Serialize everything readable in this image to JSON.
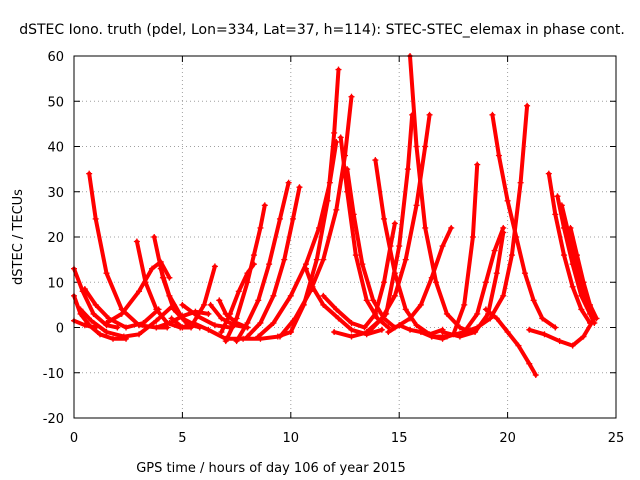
{
  "chart_data": {
    "type": "scatter",
    "title": "dSTEC Iono. truth (pdel, Lon=334, Lat=37, h=114): STEC-STEC_elemax in phase cont.",
    "xlabel": "GPS time / hours of day 106 of year 2015",
    "ylabel": "dSTEC  / TECUs",
    "xlim": [
      0,
      25
    ],
    "ylim": [
      -20,
      60
    ],
    "xticks": [
      0,
      5,
      10,
      15,
      20,
      25
    ],
    "yticks": [
      -20,
      -10,
      0,
      10,
      20,
      30,
      40,
      50,
      60
    ],
    "grid": true,
    "marker": "plus",
    "color": "#ff0000",
    "series": [
      {
        "x": [
          0.0,
          0.4,
          0.9,
          1.5,
          2.0
        ],
        "y": [
          13,
          8,
          3,
          0.5,
          0
        ]
      },
      {
        "x": [
          0.0,
          0.3,
          0.7,
          1.2,
          1.8,
          2.4
        ],
        "y": [
          7,
          3,
          0.5,
          -1.5,
          -2.5,
          -2.5
        ]
      },
      {
        "x": [
          0.0,
          0.5,
          1.0
        ],
        "y": [
          1.5,
          0.5,
          0
        ]
      },
      {
        "x": [
          0.7,
          1.0,
          1.5,
          2.2,
          3.0,
          3.8,
          4.3
        ],
        "y": [
          34,
          24,
          12,
          4,
          0.5,
          0,
          0
        ]
      },
      {
        "x": [
          0.5,
          1.0,
          1.6,
          2.4,
          3.2,
          3.9
        ],
        "y": [
          8.5,
          5,
          2,
          0,
          1,
          4
        ]
      },
      {
        "x": [
          0.3,
          0.8,
          1.5,
          2.3,
          3.0,
          3.8,
          4.6
        ],
        "y": [
          4,
          1.5,
          -1,
          -2,
          -1.5,
          1.5,
          5
        ]
      },
      {
        "x": [
          1.5,
          2.2,
          3.0,
          3.6,
          4.0,
          4.4
        ],
        "y": [
          1,
          3,
          8,
          13,
          14.5,
          11
        ]
      },
      {
        "x": [
          2.9,
          3.3,
          3.8,
          4.3,
          4.9,
          5.4
        ],
        "y": [
          19,
          10,
          4,
          1,
          0,
          0
        ]
      },
      {
        "x": [
          3.7,
          4.1,
          4.6,
          5.2,
          5.8
        ],
        "y": [
          20,
          11,
          4,
          1,
          0
        ]
      },
      {
        "x": [
          4.0,
          4.4,
          5.0,
          5.6
        ],
        "y": [
          13,
          7,
          2,
          0.5
        ]
      },
      {
        "x": [
          3.8,
          4.4,
          5.0,
          5.6,
          6.2
        ],
        "y": [
          0,
          1,
          2.5,
          3.5,
          3
        ]
      },
      {
        "x": [
          4.5,
          5.0,
          5.5,
          6.0,
          6.5
        ],
        "y": [
          2,
          0,
          1,
          5,
          13.5
        ]
      },
      {
        "x": [
          5.0,
          5.7,
          6.5,
          7.2
        ],
        "y": [
          5,
          2.5,
          0.5,
          0
        ]
      },
      {
        "x": [
          6.3,
          6.8,
          7.4,
          8.0
        ],
        "y": [
          5,
          2,
          0.5,
          0
        ]
      },
      {
        "x": [
          6.7,
          7.0,
          7.5,
          8.0
        ],
        "y": [
          6,
          3,
          1,
          0
        ]
      },
      {
        "x": [
          5.5,
          6.2,
          7.0,
          7.8,
          8.6,
          9.4,
          10.0
        ],
        "y": [
          1,
          -0.5,
          -2.5,
          -2.5,
          -2.5,
          -2,
          -1
        ]
      },
      {
        "x": [
          6.8,
          7.2,
          7.6,
          8.0,
          8.3
        ],
        "y": [
          -1,
          3,
          8,
          12,
          14
        ]
      },
      {
        "x": [
          7.0,
          7.5,
          8.0,
          8.3,
          8.6,
          8.8
        ],
        "y": [
          -3,
          2,
          10,
          16,
          22,
          27
        ]
      },
      {
        "x": [
          7.5,
          8.0,
          8.5,
          9.0,
          9.5,
          9.9
        ],
        "y": [
          -3,
          1,
          6,
          14,
          24,
          32
        ]
      },
      {
        "x": [
          8.0,
          8.6,
          9.2,
          9.7,
          10.1,
          10.4
        ],
        "y": [
          -2,
          1,
          7,
          15,
          24,
          31
        ]
      },
      {
        "x": [
          8.5,
          9.2,
          10.0,
          10.7,
          11.3,
          11.8,
          12.1
        ],
        "y": [
          -2,
          1,
          7,
          14,
          22,
          32,
          41
        ]
      },
      {
        "x": [
          9.5,
          10.2,
          10.9,
          11.5,
          12.1,
          12.5,
          12.8
        ],
        "y": [
          -2,
          2,
          8,
          15,
          26,
          38,
          51
        ]
      },
      {
        "x": [
          10.0,
          10.6,
          11.2,
          11.7,
          12.0,
          12.2
        ],
        "y": [
          -1,
          5,
          15,
          28,
          43,
          57
        ]
      },
      {
        "x": [
          10.7,
          11.0,
          11.5,
          12.2,
          12.8,
          13.5,
          14.2
        ],
        "y": [
          13,
          9,
          5,
          2,
          -0.5,
          -1.5,
          -0.5
        ]
      },
      {
        "x": [
          11.5,
          12.1,
          12.8,
          13.4,
          13.9,
          14.3,
          14.6,
          14.8
        ],
        "y": [
          7,
          4,
          1,
          0,
          3,
          10,
          18,
          23
        ]
      },
      {
        "x": [
          12.3,
          12.6,
          13.0,
          13.5,
          14.0,
          14.5
        ],
        "y": [
          42,
          30,
          16,
          6,
          2,
          0
        ]
      },
      {
        "x": [
          12.6,
          12.9,
          13.3,
          13.8,
          14.3,
          14.8
        ],
        "y": [
          35,
          25,
          14,
          6,
          2,
          0
        ]
      },
      {
        "x": [
          12.0,
          12.8,
          13.6,
          14.4,
          15.0,
          15.4,
          15.6
        ],
        "y": [
          -1,
          -2,
          -1,
          3,
          18,
          35,
          47
        ]
      },
      {
        "x": [
          13.5,
          14.2,
          14.8,
          15.3,
          15.8,
          16.2,
          16.4
        ],
        "y": [
          -1,
          2,
          7,
          15,
          27,
          40,
          47
        ]
      },
      {
        "x": [
          13.9,
          14.3,
          14.8,
          15.3,
          15.8,
          16.4,
          17.0
        ],
        "y": [
          37,
          24,
          12,
          4,
          0.5,
          -1.5,
          -0.5
        ]
      },
      {
        "x": [
          14.5,
          15.0,
          15.5,
          16.0,
          16.5,
          17.0,
          17.4
        ],
        "y": [
          -1,
          0.5,
          2,
          5,
          11,
          18,
          22
        ]
      },
      {
        "x": [
          15.5,
          15.8,
          16.2,
          16.7,
          17.2,
          17.8,
          18.3
        ],
        "y": [
          60,
          40,
          22,
          10,
          3,
          0,
          -1
        ]
      },
      {
        "x": [
          15.0,
          15.5,
          16.0,
          16.5,
          17.0,
          17.5,
          18.0,
          18.4,
          18.6
        ],
        "y": [
          0.5,
          -0.5,
          -1,
          -2,
          -2.5,
          -1.5,
          5,
          20,
          36
        ]
      },
      {
        "x": [
          16.5,
          17.2,
          18.0,
          18.6,
          19.0,
          19.4,
          19.8
        ],
        "y": [
          -2,
          -2,
          -1,
          3,
          10,
          17,
          22
        ]
      },
      {
        "x": [
          17.0,
          17.8,
          18.5,
          19.1,
          19.5,
          19.8
        ],
        "y": [
          -1,
          -2,
          -1,
          3,
          12,
          21
        ]
      },
      {
        "x": [
          19.3,
          19.6,
          20.0,
          20.4,
          20.8,
          21.2,
          21.6,
          22.2
        ],
        "y": [
          47,
          38,
          28,
          20,
          12,
          6,
          2,
          0
        ]
      },
      {
        "x": [
          18.0,
          18.6,
          19.2,
          19.8,
          20.2,
          20.6,
          20.9
        ],
        "y": [
          -1,
          0,
          2,
          7,
          16,
          32,
          49
        ]
      },
      {
        "x": [
          19.0,
          19.5,
          20.0,
          20.5,
          21.0,
          21.3
        ],
        "y": [
          4,
          2,
          -1,
          -4,
          -8,
          -10.5
        ]
      },
      {
        "x": [
          21.9,
          22.2,
          22.6,
          23.0,
          23.4,
          23.8
        ],
        "y": [
          34,
          25,
          16,
          9,
          4,
          1
        ]
      },
      {
        "x": [
          22.3,
          22.6,
          23.0,
          23.4,
          23.8,
          24.0
        ],
        "y": [
          29,
          22,
          14,
          7,
          3,
          1
        ]
      },
      {
        "x": [
          22.5,
          22.8,
          23.1,
          23.4,
          23.7,
          24.0
        ],
        "y": [
          27,
          21,
          15,
          9,
          5,
          2
        ]
      },
      {
        "x": [
          22.9,
          23.2,
          23.5,
          23.8,
          24.1
        ],
        "y": [
          22,
          16,
          10,
          5,
          2
        ]
      },
      {
        "x": [
          21.0,
          21.7,
          22.4,
          23.0,
          23.5,
          24.0
        ],
        "y": [
          -0.5,
          -1.5,
          -3,
          -4,
          -2,
          2
        ]
      }
    ]
  }
}
